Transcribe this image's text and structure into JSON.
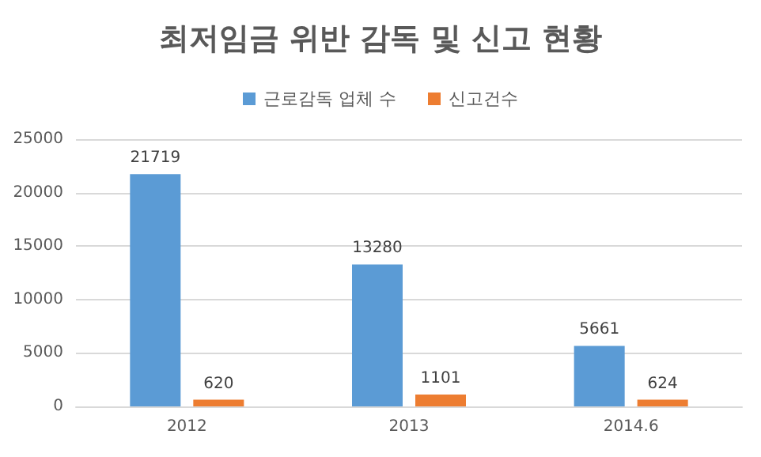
{
  "chart_data": {
    "type": "bar",
    "title": "최저임금 위반 감독 및 신고 현황",
    "categories": [
      "2012",
      "2013",
      "2014.6"
    ],
    "series": [
      {
        "name": "근로감독 업체 수",
        "color": "#5b9bd5",
        "values": [
          21719,
          13280,
          5661
        ]
      },
      {
        "name": "신고건수",
        "color": "#ed7d31",
        "values": [
          620,
          1101,
          624
        ]
      }
    ],
    "ylim": [
      0,
      25000
    ],
    "yticks": [
      0,
      5000,
      10000,
      15000,
      20000,
      25000
    ],
    "grid": "y",
    "legend": "top",
    "data_labels": true
  }
}
